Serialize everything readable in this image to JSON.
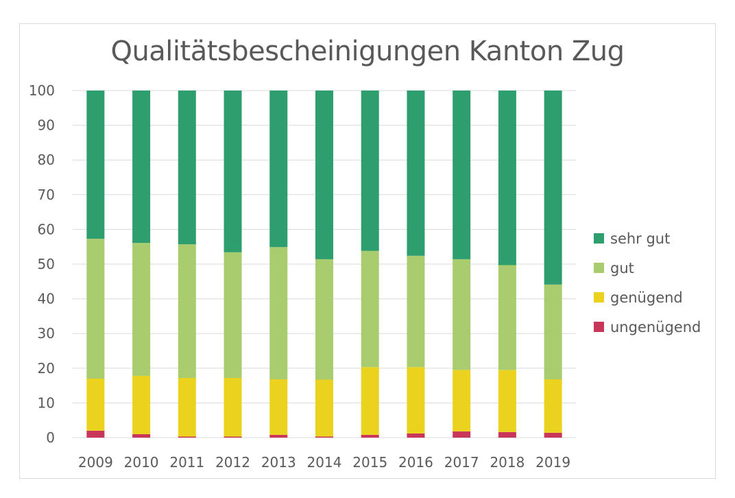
{
  "chart_data": {
    "type": "bar",
    "stacked": true,
    "title": "Qualitätsbescheinigungen Kanton Zug",
    "xlabel": "",
    "ylabel": "",
    "ylim": [
      0,
      100
    ],
    "yticks": [
      "0",
      "10",
      "20",
      "30",
      "40",
      "50",
      "60",
      "70",
      "80",
      "90",
      "100"
    ],
    "ytick_values": [
      0,
      10,
      20,
      30,
      40,
      50,
      60,
      70,
      80,
      90,
      100
    ],
    "grid": true,
    "legend_position": "right",
    "categories": [
      "2009",
      "2010",
      "2011",
      "2012",
      "2013",
      "2014",
      "2015",
      "2016",
      "2017",
      "2018",
      "2019"
    ],
    "series": [
      {
        "name": "ungenügend",
        "color": "#c8375a",
        "values": [
          2.0,
          1.0,
          0.3,
          0.3,
          0.8,
          0.3,
          0.8,
          1.2,
          1.8,
          1.6,
          1.4
        ]
      },
      {
        "name": "genügend",
        "color": "#ebd21e",
        "values": [
          15.0,
          16.8,
          16.9,
          16.9,
          16.0,
          16.4,
          19.5,
          19.1,
          17.7,
          17.9,
          15.4
        ]
      },
      {
        "name": "gut",
        "color": "#a8cc6e",
        "values": [
          40.3,
          38.3,
          38.5,
          36.2,
          38.1,
          34.7,
          33.5,
          32.1,
          31.9,
          30.2,
          27.3
        ]
      },
      {
        "name": "sehr gut",
        "color": "#2e9e6e",
        "values": [
          42.7,
          43.9,
          44.3,
          46.6,
          45.1,
          48.6,
          46.2,
          47.6,
          48.6,
          50.3,
          55.9
        ]
      }
    ],
    "legend_order": [
      "sehr gut",
      "gut",
      "genügend",
      "ungenügend"
    ]
  }
}
